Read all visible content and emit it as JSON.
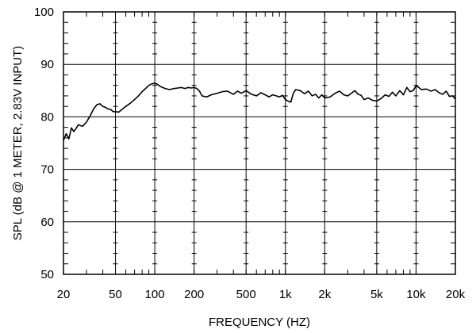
{
  "chart_data": {
    "type": "line",
    "title": "",
    "xlabel": "FREQUENCY  (HZ)",
    "ylabel": "SPL (dB @ 1 METER, 2.83V INPUT)",
    "x_scale": "log",
    "xlim": [
      20,
      20000
    ],
    "ylim": [
      50,
      100
    ],
    "grid": true,
    "legend": "none",
    "x_ticks": [
      {
        "value": 20,
        "label": "20"
      },
      {
        "value": 50,
        "label": "50"
      },
      {
        "value": 100,
        "label": "100"
      },
      {
        "value": 200,
        "label": "200"
      },
      {
        "value": 500,
        "label": "500"
      },
      {
        "value": 1000,
        "label": "1k"
      },
      {
        "value": 2000,
        "label": "2k"
      },
      {
        "value": 5000,
        "label": "5k"
      },
      {
        "value": 10000,
        "label": "10k"
      },
      {
        "value": 20000,
        "label": "20k"
      }
    ],
    "y_ticks": [
      {
        "value": 50,
        "label": "50"
      },
      {
        "value": 60,
        "label": "60"
      },
      {
        "value": 70,
        "label": "70"
      },
      {
        "value": 80,
        "label": "80"
      },
      {
        "value": 90,
        "label": "90"
      },
      {
        "value": 100,
        "label": "100"
      }
    ],
    "series": [
      {
        "color": "#000000",
        "x": [
          20,
          21,
          22,
          23,
          24,
          25,
          26,
          28,
          30,
          32,
          34,
          36,
          38,
          40,
          42,
          44,
          46,
          48,
          50,
          53,
          56,
          60,
          65,
          70,
          75,
          80,
          85,
          90,
          95,
          100,
          105,
          110,
          120,
          130,
          140,
          150,
          160,
          170,
          180,
          190,
          200,
          210,
          220,
          230,
          250,
          270,
          300,
          330,
          360,
          400,
          430,
          460,
          500,
          550,
          600,
          650,
          700,
          750,
          800,
          850,
          900,
          950,
          1000,
          1050,
          1100,
          1150,
          1200,
          1300,
          1400,
          1500,
          1600,
          1700,
          1800,
          1900,
          2000,
          2200,
          2400,
          2600,
          2800,
          3000,
          3200,
          3400,
          3600,
          3800,
          4000,
          4300,
          4600,
          5000,
          5400,
          5800,
          6200,
          6600,
          7000,
          7500,
          8000,
          8500,
          9000,
          9500,
          10000,
          10500,
          11000,
          12000,
          13000,
          14000,
          15000,
          16000,
          17000,
          18000,
          19000,
          20000
        ],
        "y": [
          75.5,
          76.8,
          75.8,
          77.9,
          77.2,
          77.8,
          78.5,
          78.2,
          79.0,
          80.2,
          81.5,
          82.3,
          82.5,
          82.0,
          81.8,
          81.5,
          81.4,
          81.0,
          81.0,
          80.9,
          81.4,
          82.0,
          82.6,
          83.3,
          84.0,
          84.8,
          85.4,
          86.0,
          86.3,
          86.4,
          86.2,
          85.8,
          85.4,
          85.2,
          85.4,
          85.5,
          85.6,
          85.4,
          85.6,
          85.5,
          85.6,
          85.4,
          84.9,
          84.0,
          83.8,
          84.2,
          84.5,
          84.8,
          84.9,
          84.3,
          84.9,
          84.5,
          85.0,
          84.3,
          84.0,
          84.6,
          84.2,
          83.8,
          84.2,
          84.0,
          83.8,
          84.1,
          83.3,
          83.0,
          82.8,
          84.5,
          85.2,
          85.0,
          84.4,
          84.9,
          84.0,
          84.3,
          83.6,
          84.2,
          83.6,
          83.8,
          84.5,
          84.9,
          84.2,
          84.0,
          84.5,
          85.0,
          84.3,
          84.1,
          83.3,
          83.6,
          83.2,
          83.0,
          83.5,
          84.2,
          83.9,
          84.7,
          84.0,
          85.0,
          84.2,
          85.6,
          84.8,
          85.0,
          85.9,
          85.6,
          85.2,
          85.3,
          84.9,
          85.2,
          84.6,
          84.3,
          84.9,
          83.9,
          84.0,
          83.4
        ]
      }
    ]
  }
}
